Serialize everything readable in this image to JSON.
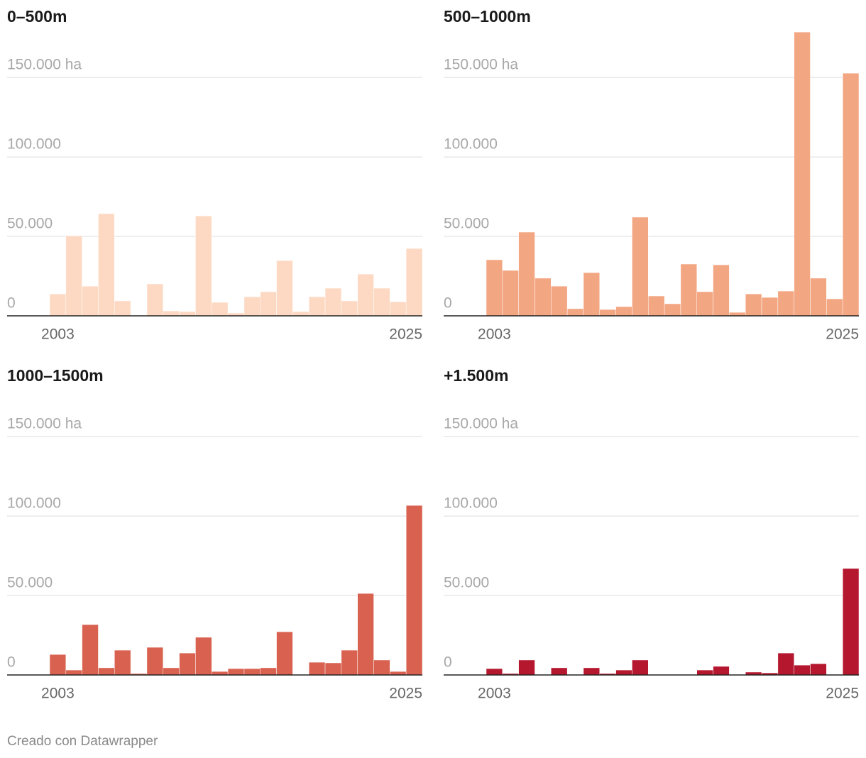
{
  "chart_data": [
    {
      "type": "bar",
      "title": "0–500m",
      "categories": [
        "2003",
        null,
        null,
        null,
        null,
        null,
        null,
        null,
        null,
        null,
        null,
        null,
        null,
        null,
        null,
        null,
        null,
        null,
        null,
        null,
        null,
        null,
        "2025"
      ],
      "values": [
        13800,
        50400,
        18700,
        64300,
        9400,
        0,
        20100,
        3100,
        2700,
        62900,
        8500,
        1800,
        12000,
        15200,
        34800,
        2700,
        12000,
        17400,
        9400,
        26300,
        17400,
        8900,
        42400
      ],
      "color": "#fdd9c3",
      "ylim": [
        0,
        180000
      ],
      "yticks": [
        0,
        {
          "value": 50000,
          "label": "50.000"
        },
        {
          "value": 100000,
          "label": "100.000"
        },
        {
          "value": 150000,
          "label": "150.000 ha"
        }
      ],
      "grid": true
    },
    {
      "type": "bar",
      "title": "500–1000m",
      "categories": [
        "2003",
        null,
        null,
        null,
        null,
        null,
        null,
        null,
        null,
        null,
        null,
        null,
        null,
        null,
        null,
        null,
        null,
        null,
        null,
        null,
        null,
        null,
        "2025"
      ],
      "values": [
        35300,
        28600,
        52700,
        23700,
        18700,
        4500,
        27200,
        4000,
        5800,
        62100,
        12500,
        7600,
        32600,
        15200,
        32100,
        2200,
        13800,
        11600,
        15600,
        178600,
        23700,
        10700,
        152700
      ],
      "color": "#f3a682",
      "ylim": [
        0,
        180000
      ],
      "yticks": [
        0,
        {
          "value": 50000,
          "label": "50.000"
        },
        {
          "value": 100000,
          "label": "100.000"
        },
        {
          "value": 150000,
          "label": "150.000 ha"
        }
      ],
      "grid": true
    },
    {
      "type": "bar",
      "title": "1000–1500m",
      "categories": [
        "2003",
        null,
        null,
        null,
        null,
        null,
        null,
        null,
        null,
        null,
        null,
        null,
        null,
        null,
        null,
        null,
        null,
        null,
        null,
        null,
        null,
        null,
        "2025"
      ],
      "values": [
        12900,
        3100,
        31700,
        4500,
        15600,
        900,
        17400,
        4500,
        13800,
        23700,
        2200,
        4000,
        4000,
        4500,
        27200,
        0,
        8000,
        7600,
        15600,
        51300,
        9400,
        2200,
        106700
      ],
      "color": "#d96150",
      "ylim": [
        0,
        180000
      ],
      "yticks": [
        0,
        {
          "value": 50000,
          "label": "50.000"
        },
        {
          "value": 100000,
          "label": "100.000"
        },
        {
          "value": 150000,
          "label": "150.000 ha"
        }
      ],
      "grid": true
    },
    {
      "type": "bar",
      "title": "+1.500m",
      "categories": [
        "2003",
        null,
        null,
        null,
        null,
        null,
        null,
        null,
        null,
        null,
        null,
        null,
        null,
        null,
        null,
        null,
        null,
        null,
        null,
        null,
        null,
        null,
        "2025"
      ],
      "values": [
        4000,
        900,
        9400,
        0,
        4500,
        0,
        4500,
        900,
        3100,
        9400,
        0,
        0,
        0,
        3100,
        5400,
        0,
        1800,
        1300,
        13800,
        6200,
        7100,
        0,
        67000
      ],
      "color": "#b5172e",
      "ylim": [
        0,
        180000
      ],
      "yticks": [
        0,
        {
          "value": 50000,
          "label": "50.000"
        },
        {
          "value": 100000,
          "label": "100.000"
        },
        {
          "value": 150000,
          "label": "150.000 ha"
        }
      ],
      "grid": true
    }
  ],
  "footer": "Creado con Datawrapper"
}
